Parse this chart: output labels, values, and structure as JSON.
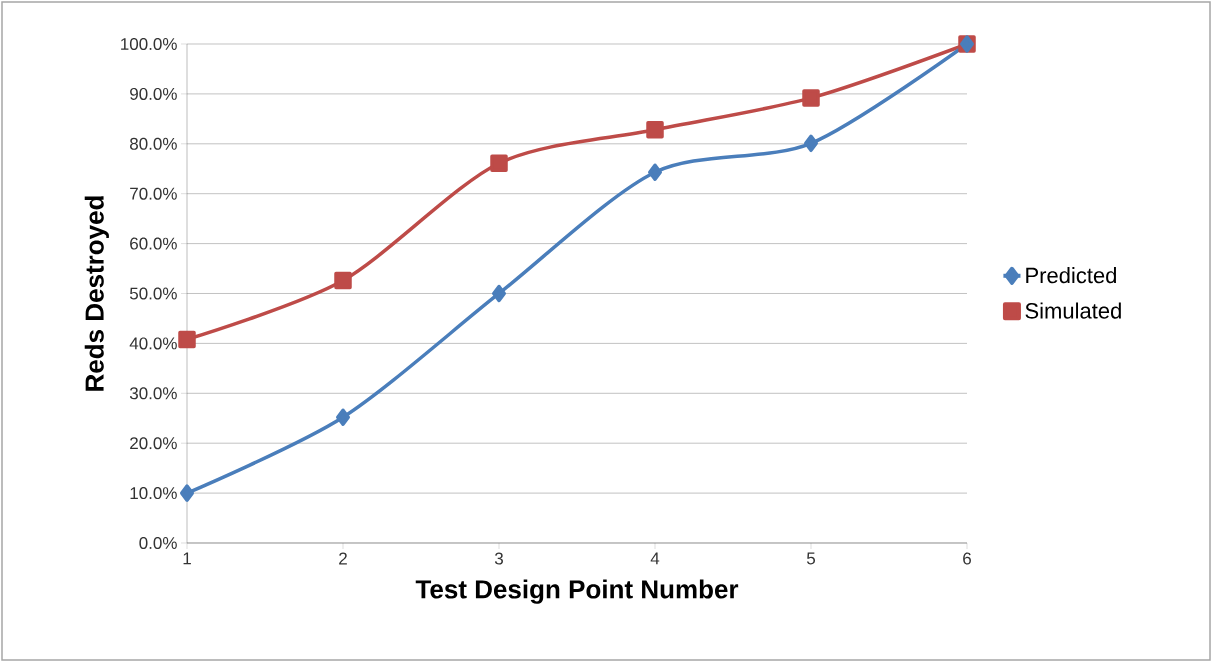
{
  "chart_data": {
    "type": "line",
    "xlabel": "Test Design Point Number",
    "ylabel": "Reds Destroyed",
    "x": [
      1,
      2,
      3,
      4,
      5,
      6
    ],
    "series": [
      {
        "name": "Predicted",
        "color": "#4a7ebb",
        "marker": "diamond",
        "values": [
          10.0,
          25.2,
          50.0,
          74.3,
          80.1,
          100.0
        ]
      },
      {
        "name": "Simulated",
        "color": "#be4b48",
        "marker": "square",
        "values": [
          40.8,
          52.6,
          76.1,
          82.8,
          89.2,
          100.0
        ]
      }
    ],
    "xlim": [
      1,
      6
    ],
    "xticks": [
      1,
      2,
      3,
      4,
      5,
      6
    ],
    "ylim": [
      0,
      100
    ],
    "yticks": [
      {
        "value": 0,
        "label": "0.0%"
      },
      {
        "value": 10,
        "label": "10.0%"
      },
      {
        "value": 20,
        "label": "20.0%"
      },
      {
        "value": 30,
        "label": "30.0%"
      },
      {
        "value": 40,
        "label": "40.0%"
      },
      {
        "value": 50,
        "label": "50.0%"
      },
      {
        "value": 60,
        "label": "60.0%"
      },
      {
        "value": 70,
        "label": "70.0%"
      },
      {
        "value": 80,
        "label": "80.0%"
      },
      {
        "value": 90,
        "label": "90.0%"
      },
      {
        "value": 100,
        "label": "100.0%"
      }
    ],
    "grid": "y",
    "legend": "right",
    "line_style": "solid"
  }
}
